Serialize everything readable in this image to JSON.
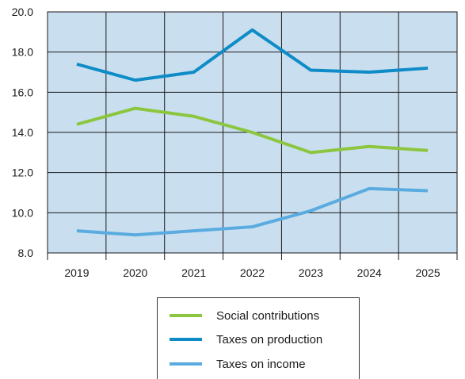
{
  "chart_data": {
    "type": "line",
    "x": [
      "2019",
      "2020",
      "2021",
      "2022",
      "2023",
      "2024",
      "2025"
    ],
    "ylim": [
      8.0,
      20.0
    ],
    "yticks": [
      "8.0",
      "10.0",
      "12.0",
      "14.0",
      "16.0",
      "18.0",
      "20.0"
    ],
    "grid": true,
    "plot_background": "#c9dff0",
    "legend_position": "bottom",
    "series": [
      {
        "name": "Social contributions",
        "color": "#8cc63f",
        "values": [
          14.4,
          15.2,
          14.8,
          14.0,
          13.0,
          13.3,
          13.1
        ]
      },
      {
        "name": "Taxes on production",
        "color": "#0f8cc7",
        "values": [
          17.4,
          16.6,
          17.0,
          19.1,
          17.1,
          17.0,
          17.2
        ]
      },
      {
        "name": "Taxes on income",
        "color": "#5aabdf",
        "values": [
          9.1,
          8.9,
          9.1,
          9.3,
          10.1,
          11.2,
          11.1
        ]
      }
    ]
  }
}
